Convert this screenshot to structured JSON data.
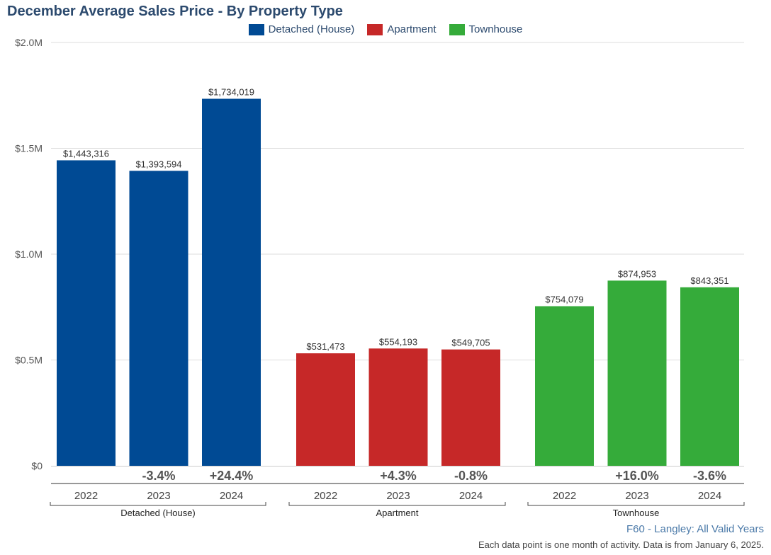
{
  "chart_data": {
    "type": "bar",
    "title": "December Average Sales Price - By Property Type",
    "groups": [
      "Detached (House)",
      "Apartment",
      "Townhouse"
    ],
    "categories": [
      "2022",
      "2023",
      "2024"
    ],
    "series": [
      {
        "name": "Detached (House)",
        "color": "#004a94",
        "values": [
          1443316,
          1393594,
          1734019
        ],
        "value_labels": [
          "$1,443,316",
          "$1,393,594",
          "$1,734,019"
        ],
        "changes": [
          "",
          "-3.4%",
          "+24.4%"
        ]
      },
      {
        "name": "Apartment",
        "color": "#c62828",
        "values": [
          531473,
          554193,
          549705
        ],
        "value_labels": [
          "$531,473",
          "$554,193",
          "$549,705"
        ],
        "changes": [
          "",
          "+4.3%",
          "-0.8%"
        ]
      },
      {
        "name": "Townhouse",
        "color": "#35ab3a",
        "values": [
          754079,
          874953,
          843351
        ],
        "value_labels": [
          "$754,079",
          "$874,953",
          "$843,351"
        ],
        "changes": [
          "",
          "+16.0%",
          "-3.6%"
        ]
      }
    ],
    "ylim": [
      0,
      2000000
    ],
    "yticks": [
      0,
      500000,
      1000000,
      1500000,
      2000000
    ],
    "ytick_labels": [
      "$0",
      "$0.5M",
      "$1.0M",
      "$1.5M",
      "$2.0M"
    ],
    "grid": true,
    "legend_position": "top-center",
    "source": "F60 - Langley: All Valid Years",
    "footnote": "Each data point is one month of activity. Data is from January 6, 2025."
  }
}
